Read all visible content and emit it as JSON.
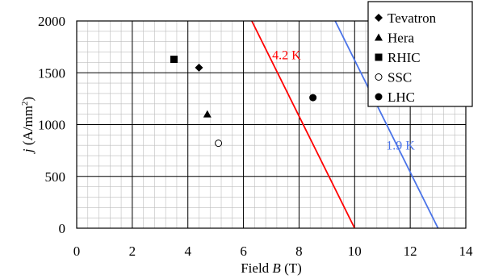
{
  "chart_data": {
    "type": "scatter",
    "xlabel": {
      "prefix": "Field ",
      "var": "B",
      "suffix": "  (T)"
    },
    "ylabel": {
      "var": "j",
      "mid": "  (A/mm",
      "sup": "2",
      "end": ")"
    },
    "xlim": [
      0,
      14
    ],
    "ylim": [
      0,
      2000
    ],
    "x_ticks": [
      0,
      2,
      4,
      6,
      8,
      10,
      12,
      14
    ],
    "y_ticks": [
      0,
      500,
      1000,
      1500,
      2000
    ],
    "x_tick_labels": [
      "0",
      "2",
      "4",
      "6",
      "8",
      "10",
      "12",
      "14"
    ],
    "y_tick_labels": [
      "0",
      "500",
      "1000",
      "1500",
      "2000"
    ],
    "grid": true,
    "legend_position": "top-right",
    "series": [
      {
        "name": "Tevatron",
        "marker": "diamond",
        "x": 4.4,
        "y": 1550
      },
      {
        "name": "Hera",
        "marker": "triangle",
        "x": 4.7,
        "y": 1100
      },
      {
        "name": "RHIC",
        "marker": "square",
        "x": 3.5,
        "y": 1630
      },
      {
        "name": "SSC",
        "marker": "open-circle",
        "x": 5.1,
        "y": 820
      },
      {
        "name": "LHC",
        "marker": "circle",
        "x": 8.5,
        "y": 1260
      }
    ],
    "lines": [
      {
        "label": "4.2 K",
        "color": "#ff0000",
        "points": [
          [
            6.3,
            2000
          ],
          [
            10.0,
            0
          ]
        ],
        "label_at": [
          7.55,
          1630
        ]
      },
      {
        "label": "1.9 K",
        "color": "#4a73e8",
        "points": [
          [
            9.3,
            2000
          ],
          [
            13.0,
            0
          ]
        ],
        "label_at": [
          11.65,
          760
        ]
      }
    ]
  }
}
